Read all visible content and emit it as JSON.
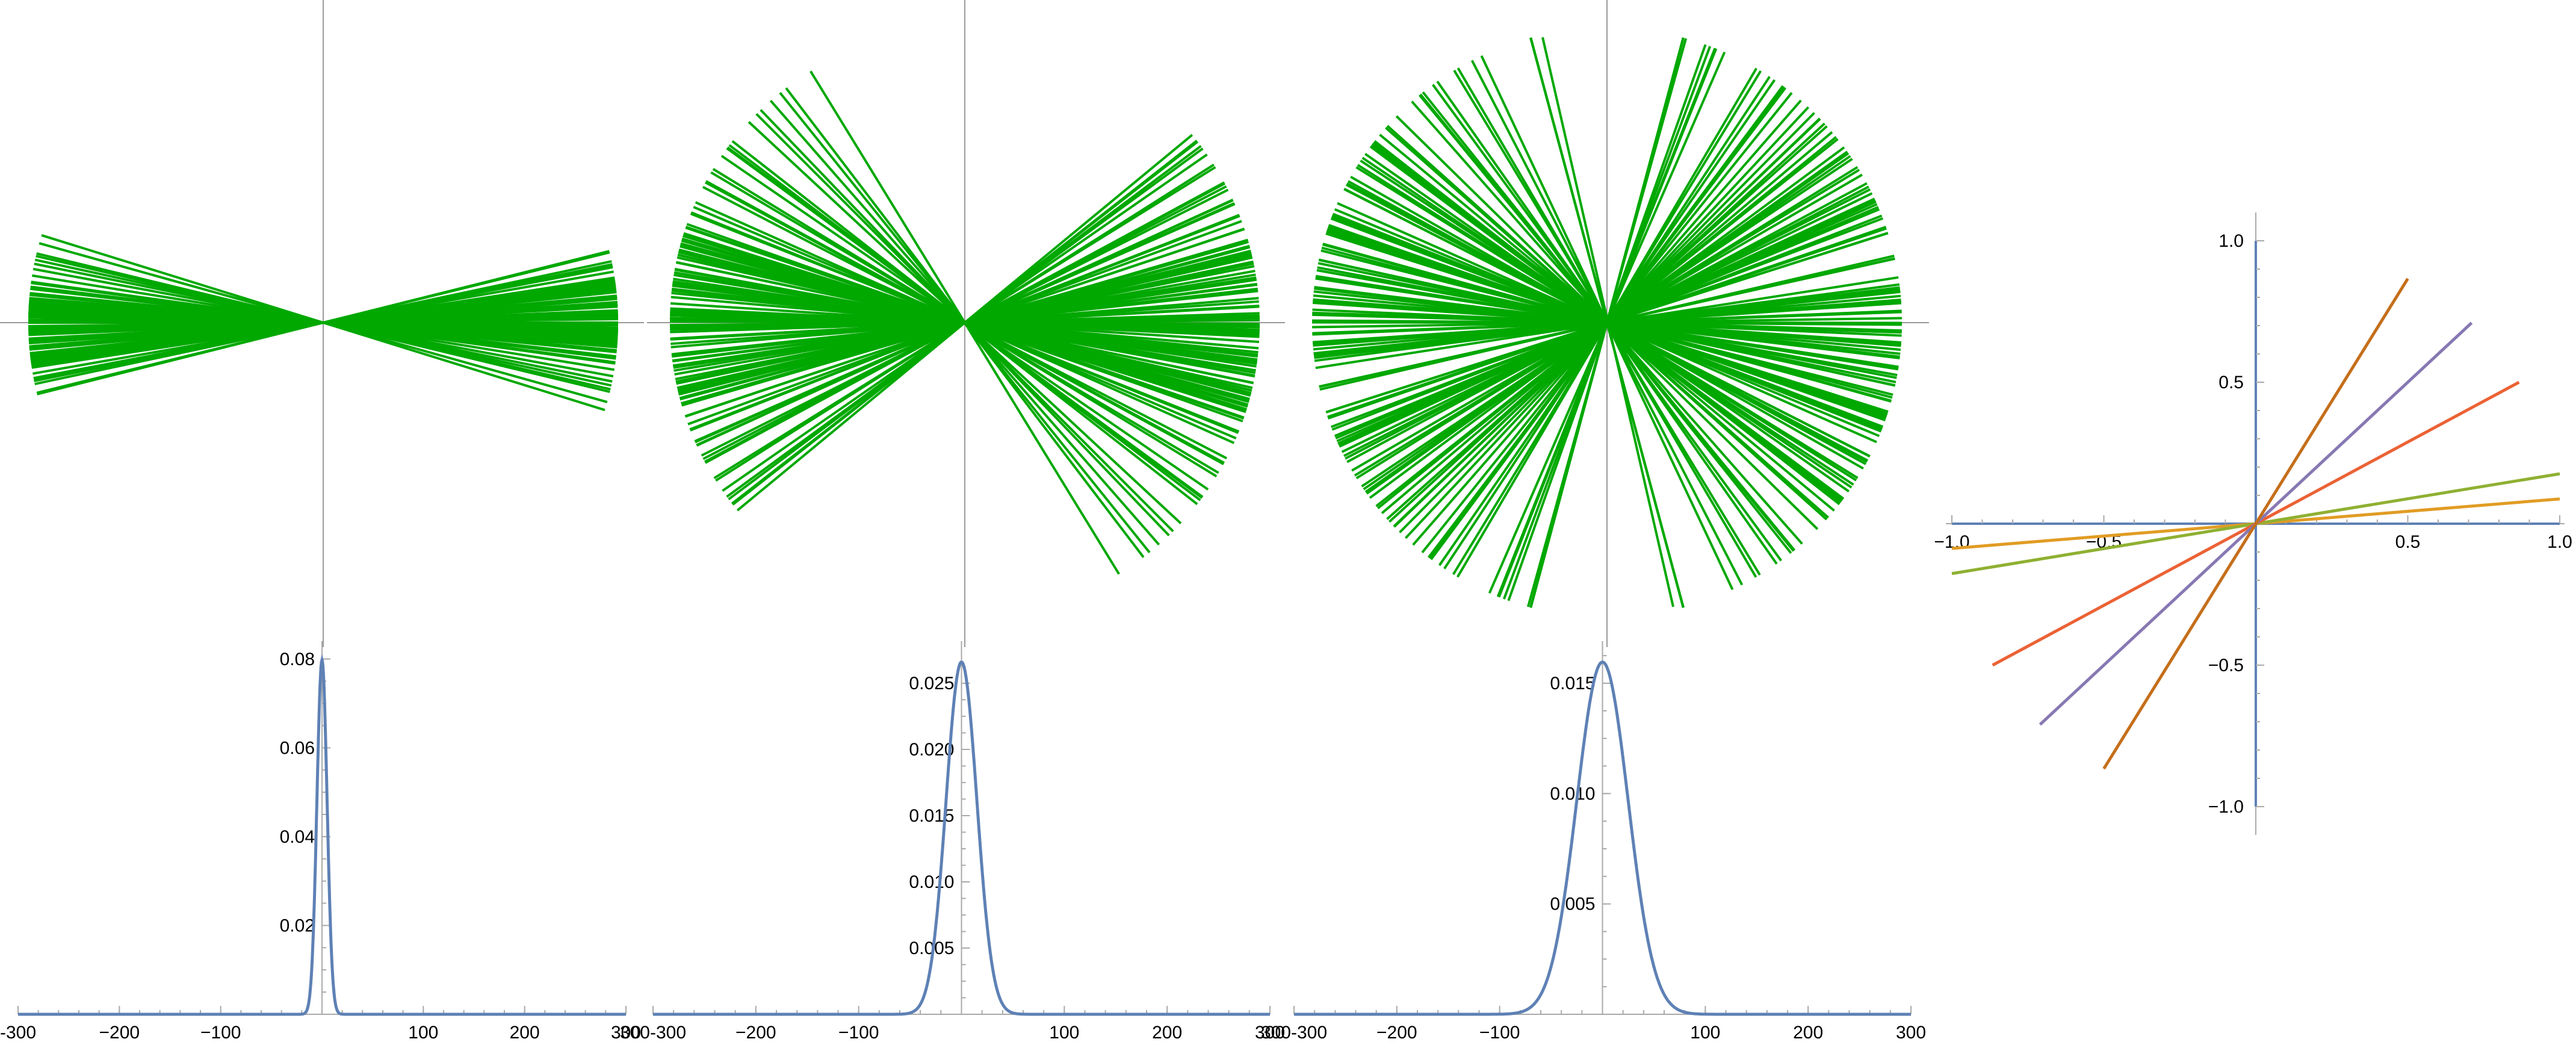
{
  "chart_data": [
    {
      "type": "line",
      "id": "fan-1",
      "angle_spread_deg": 7,
      "line_count": 90,
      "ray_length": 490,
      "color": "#00a800",
      "axes": true
    },
    {
      "type": "line",
      "id": "fan-2",
      "angle_spread_deg": 22,
      "line_count": 130,
      "ray_length": 490,
      "color": "#00a800",
      "axes": true
    },
    {
      "type": "line",
      "id": "fan-3",
      "angle_spread_deg": 38,
      "line_count": 150,
      "ray_length": 490,
      "color": "#00a800",
      "axes": true
    },
    {
      "type": "line",
      "id": "density-1",
      "distribution": "normal",
      "mean": 0,
      "sd": 5,
      "xlim": [
        -300,
        300
      ],
      "ylim": [
        0,
        0.082
      ],
      "xticks": [
        -300,
        -200,
        -100,
        100,
        200,
        300
      ],
      "xtick_labels": [
        "-300",
        "−200",
        "−100",
        "100",
        "200",
        "300"
      ],
      "yticks": [
        0.02,
        0.04,
        0.06,
        0.08
      ],
      "ytick_labels": [
        "0.02",
        "0.04",
        "0.06",
        "0.08"
      ],
      "color": "#5e81b5"
    },
    {
      "type": "line",
      "id": "density-2",
      "distribution": "normal",
      "mean": 0,
      "sd": 15,
      "xlim": [
        -300,
        300
      ],
      "ylim": [
        0,
        0.0275
      ],
      "xticks": [
        -300,
        -200,
        -100,
        100,
        200,
        300
      ],
      "xtick_labels": [
        "300-300",
        "−200",
        "−100",
        "100",
        "200",
        "300"
      ],
      "yticks": [
        0.005,
        0.01,
        0.015,
        0.02,
        0.025
      ],
      "ytick_labels": [
        "0.005",
        "0.010",
        "0.015",
        "0.020",
        "0.025"
      ],
      "color": "#5e81b5"
    },
    {
      "type": "line",
      "id": "density-3",
      "distribution": "normal",
      "mean": 0,
      "sd": 25,
      "xlim": [
        -300,
        300
      ],
      "ylim": [
        0,
        0.0165
      ],
      "xticks": [
        -300,
        -200,
        -100,
        100,
        200,
        300
      ],
      "xtick_labels": [
        "300-300",
        "−200",
        "−100",
        "100",
        "200",
        "300"
      ],
      "yticks": [
        0.005,
        0.01,
        0.015
      ],
      "ytick_labels": [
        "0.005",
        "0.010",
        "0.015"
      ],
      "color": "#5e81b5"
    },
    {
      "type": "line",
      "id": "lines-through-origin",
      "xlim": [
        -1.0,
        1.0
      ],
      "ylim": [
        -1.0,
        1.0
      ],
      "xticks": [
        -1.0,
        -0.5,
        0.5,
        1.0
      ],
      "xtick_labels": [
        "−1.0",
        "−0.5",
        "0.5",
        "1.0"
      ],
      "yticks": [
        1.0,
        0.5,
        -0.5,
        -1.0
      ],
      "ytick_labels": [
        "1.0",
        "0.5",
        "−0.5",
        "−1.0"
      ],
      "series": [
        {
          "slope": 0.0875,
          "x": [
            -1.0,
            1.0
          ],
          "color": "#e19c24"
        },
        {
          "slope": 0.1763,
          "x": [
            -1.0,
            1.0
          ],
          "color": "#8fb032"
        },
        {
          "slope": 0.5774,
          "x": [
            -0.866,
            0.866
          ],
          "color": "#eb6235"
        },
        {
          "slope": 1.0,
          "x": [
            -0.71,
            0.71
          ],
          "color": "#8778b3"
        },
        {
          "slope": 1.7321,
          "x": [
            -0.5,
            0.5
          ],
          "color": "#c56e1a"
        }
      ]
    }
  ]
}
